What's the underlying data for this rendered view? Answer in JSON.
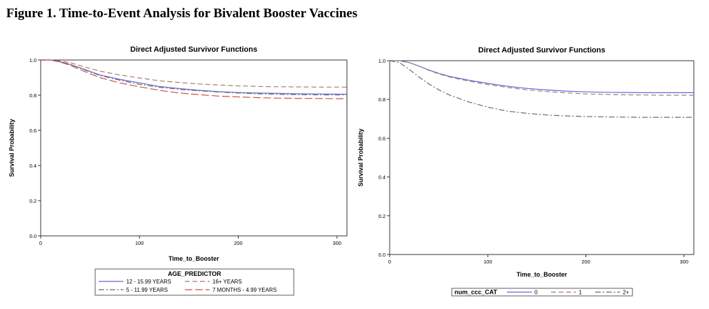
{
  "figure_title": "Figure 1. Time-to-Event Analysis for Bivalent Booster Vaccines",
  "colors": {
    "blue": "#6666dd",
    "tan": "#a87c66",
    "gray": "#6b6b6b",
    "red": "#cc5048"
  },
  "chart_data": [
    {
      "type": "line",
      "title": "Direct Adjusted Survivor Functions",
      "xlabel": "Time_to_Booster",
      "ylabel": "Survival Probability",
      "xlim": [
        0,
        310
      ],
      "ylim": [
        0,
        1
      ],
      "xticks": [
        0,
        100,
        200,
        300
      ],
      "yticks": [
        0.0,
        0.2,
        0.4,
        0.6,
        0.8,
        1.0
      ],
      "ytick_labels": [
        "0.0",
        "0.2",
        "0.4",
        "0.6",
        "0.8",
        "1.0"
      ],
      "xtick_labels": [
        "0",
        "100",
        "200",
        "300"
      ],
      "legend_title": "AGE_PREDICTOR",
      "legend_position": "bottom",
      "series": [
        {
          "name": "12 - 15.99 YEARS",
          "color": "blue",
          "dash": "solid",
          "x": [
            0,
            10,
            20,
            30,
            40,
            50,
            60,
            80,
            100,
            120,
            140,
            160,
            180,
            200,
            220,
            240,
            260,
            280,
            300,
            310
          ],
          "y": [
            1.0,
            1.0,
            0.99,
            0.975,
            0.955,
            0.935,
            0.915,
            0.89,
            0.87,
            0.85,
            0.838,
            0.828,
            0.82,
            0.815,
            0.812,
            0.81,
            0.808,
            0.807,
            0.806,
            0.806
          ]
        },
        {
          "name": "16+ YEARS",
          "color": "tan",
          "dash": "dash",
          "x": [
            0,
            10,
            20,
            30,
            40,
            50,
            60,
            80,
            100,
            120,
            140,
            160,
            180,
            200,
            220,
            240,
            260,
            280,
            300,
            310
          ],
          "y": [
            1.0,
            1.0,
            0.995,
            0.985,
            0.968,
            0.952,
            0.937,
            0.915,
            0.898,
            0.882,
            0.872,
            0.864,
            0.858,
            0.853,
            0.85,
            0.848,
            0.847,
            0.846,
            0.846,
            0.846
          ]
        },
        {
          "name": "5 - 11.99 YEARS",
          "color": "gray",
          "dash": "dashdot",
          "x": [
            0,
            10,
            20,
            30,
            40,
            50,
            60,
            80,
            100,
            120,
            140,
            160,
            180,
            200,
            220,
            240,
            260,
            280,
            300,
            310
          ],
          "y": [
            1.0,
            1.0,
            0.99,
            0.975,
            0.953,
            0.932,
            0.912,
            0.885,
            0.862,
            0.845,
            0.833,
            0.825,
            0.818,
            0.812,
            0.808,
            0.805,
            0.803,
            0.802,
            0.801,
            0.801
          ]
        },
        {
          "name": "7 MONTHS - 4.99 YEARS",
          "color": "red",
          "dash": "longdash",
          "x": [
            0,
            10,
            20,
            30,
            40,
            50,
            60,
            80,
            100,
            120,
            140,
            160,
            180,
            200,
            220,
            240,
            260,
            280,
            300,
            310
          ],
          "y": [
            1.0,
            1.0,
            0.988,
            0.97,
            0.945,
            0.922,
            0.9,
            0.87,
            0.848,
            0.828,
            0.813,
            0.803,
            0.795,
            0.79,
            0.786,
            0.783,
            0.782,
            0.781,
            0.78,
            0.78
          ]
        }
      ]
    },
    {
      "type": "line",
      "title": "Direct Adjusted Survivor Functions",
      "xlabel": "Time_to_Booster",
      "ylabel": "Survival Probability",
      "xlim": [
        0,
        310
      ],
      "ylim": [
        0,
        1
      ],
      "xticks": [
        0,
        100,
        200,
        300
      ],
      "yticks": [
        0.0,
        0.2,
        0.4,
        0.6,
        0.8,
        1.0
      ],
      "ytick_labels": [
        "0.0",
        "0.2",
        "0.4",
        "0.6",
        "0.8",
        "1.0"
      ],
      "xtick_labels": [
        "0",
        "100",
        "200",
        "300"
      ],
      "legend_title": "num_ccc_CAT",
      "legend_position": "bottom",
      "series": [
        {
          "name": "0",
          "color": "blue",
          "dash": "solid",
          "x": [
            0,
            10,
            20,
            30,
            40,
            50,
            60,
            80,
            100,
            120,
            140,
            160,
            180,
            200,
            220,
            240,
            260,
            280,
            300,
            310
          ],
          "y": [
            1.0,
            1.0,
            0.99,
            0.972,
            0.952,
            0.935,
            0.92,
            0.9,
            0.883,
            0.868,
            0.857,
            0.849,
            0.843,
            0.839,
            0.837,
            0.836,
            0.835,
            0.835,
            0.835,
            0.835
          ]
        },
        {
          "name": "1",
          "color": "tan",
          "dash": "dash",
          "x": [
            0,
            10,
            20,
            30,
            40,
            50,
            60,
            80,
            100,
            120,
            140,
            160,
            180,
            200,
            220,
            240,
            260,
            280,
            300,
            310
          ],
          "y": [
            1.0,
            1.0,
            0.99,
            0.972,
            0.95,
            0.932,
            0.917,
            0.895,
            0.877,
            0.862,
            0.85,
            0.841,
            0.834,
            0.829,
            0.826,
            0.824,
            0.823,
            0.822,
            0.822,
            0.822
          ]
        },
        {
          "name": "2+",
          "color": "gray",
          "dash": "dashdot",
          "x": [
            0,
            10,
            20,
            30,
            40,
            50,
            60,
            80,
            100,
            120,
            140,
            160,
            180,
            200,
            220,
            240,
            260,
            280,
            300,
            310
          ],
          "y": [
            1.0,
            0.99,
            0.955,
            0.915,
            0.88,
            0.85,
            0.825,
            0.788,
            0.76,
            0.74,
            0.728,
            0.72,
            0.715,
            0.712,
            0.71,
            0.709,
            0.708,
            0.708,
            0.708,
            0.708
          ]
        }
      ]
    }
  ]
}
